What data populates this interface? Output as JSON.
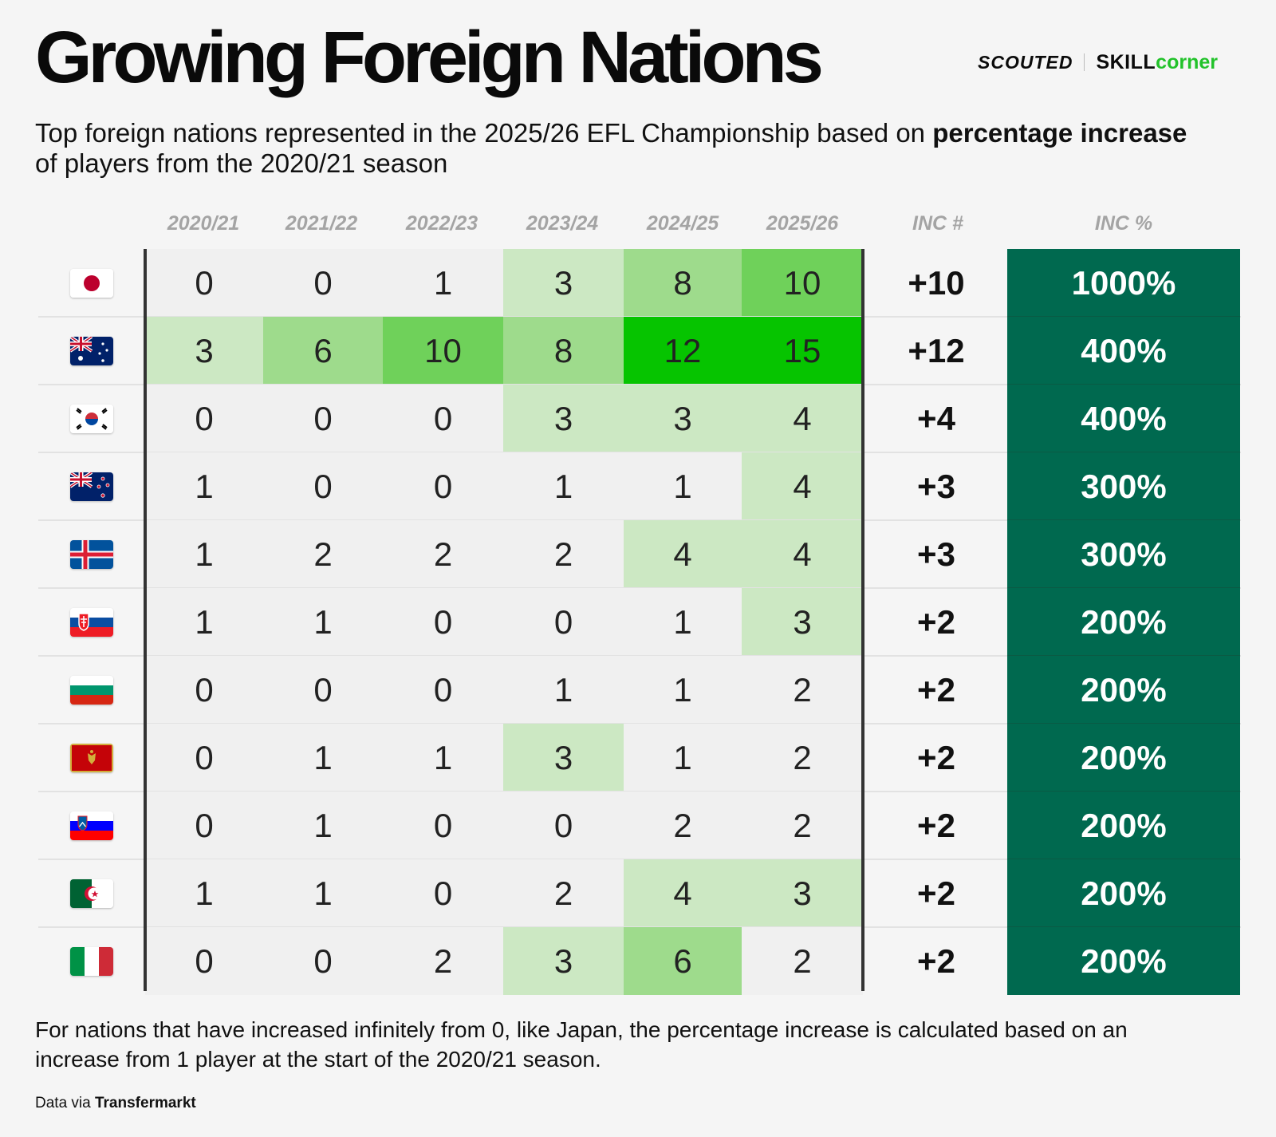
{
  "title": "Growing Foreign Nations",
  "brand": {
    "scouted": "SCOUTED",
    "skill": "SKILL",
    "corner": "corner"
  },
  "subtitle": {
    "part1": "Top foreign nations represented in the 2025/26 EFL Championship based on ",
    "bold1": "percentage increase",
    "part2": " of players from the 2020/21 season"
  },
  "chart_data": {
    "type": "table",
    "title": "Growing Foreign Nations",
    "columns": [
      "2020/21",
      "2021/22",
      "2022/23",
      "2023/24",
      "2024/25",
      "2025/26",
      "INC #",
      "INC %"
    ],
    "rows": [
      {
        "nation": "Japan",
        "flag": "japan-flag-icon",
        "values": [
          0,
          0,
          1,
          3,
          8,
          10
        ],
        "inc": "+10",
        "pct": "1000%"
      },
      {
        "nation": "Australia",
        "flag": "australia-flag-icon",
        "values": [
          3,
          6,
          10,
          8,
          12,
          15
        ],
        "inc": "+12",
        "pct": "400%"
      },
      {
        "nation": "South Korea",
        "flag": "south-korea-flag-icon",
        "values": [
          0,
          0,
          0,
          3,
          3,
          4
        ],
        "inc": "+4",
        "pct": "400%"
      },
      {
        "nation": "New Zealand",
        "flag": "new-zealand-flag-icon",
        "values": [
          1,
          0,
          0,
          1,
          1,
          4
        ],
        "inc": "+3",
        "pct": "300%"
      },
      {
        "nation": "Iceland",
        "flag": "iceland-flag-icon",
        "values": [
          1,
          2,
          2,
          2,
          4,
          4
        ],
        "inc": "+3",
        "pct": "300%"
      },
      {
        "nation": "Slovakia",
        "flag": "slovakia-flag-icon",
        "values": [
          1,
          1,
          0,
          0,
          1,
          3
        ],
        "inc": "+2",
        "pct": "200%"
      },
      {
        "nation": "Bulgaria",
        "flag": "bulgaria-flag-icon",
        "values": [
          0,
          0,
          0,
          1,
          1,
          2
        ],
        "inc": "+2",
        "pct": "200%"
      },
      {
        "nation": "Montenegro",
        "flag": "montenegro-flag-icon",
        "values": [
          0,
          1,
          1,
          3,
          1,
          2
        ],
        "inc": "+2",
        "pct": "200%"
      },
      {
        "nation": "Slovenia",
        "flag": "slovenia-flag-icon",
        "values": [
          0,
          1,
          0,
          0,
          2,
          2
        ],
        "inc": "+2",
        "pct": "200%"
      },
      {
        "nation": "Algeria",
        "flag": "algeria-flag-icon",
        "values": [
          1,
          1,
          0,
          2,
          4,
          3
        ],
        "inc": "+2",
        "pct": "200%"
      },
      {
        "nation": "Italy",
        "flag": "italy-flag-icon",
        "values": [
          0,
          0,
          2,
          3,
          6,
          2
        ],
        "inc": "+2",
        "pct": "200%"
      }
    ],
    "heat_colors": {
      "base": "#f0f0f0",
      "low": "#cce8c3",
      "mid": "#9edb8c",
      "high": "#6fd15a",
      "max": "#06c400"
    },
    "pct_color": "#00694f"
  },
  "footnote": "For nations that have increased infinitely from 0, like Japan, the percentage increase is calculated based on an increase from 1 player at the start of the 2020/21 season.",
  "source": {
    "prefix": "Data via ",
    "name": "Transfermarkt"
  }
}
